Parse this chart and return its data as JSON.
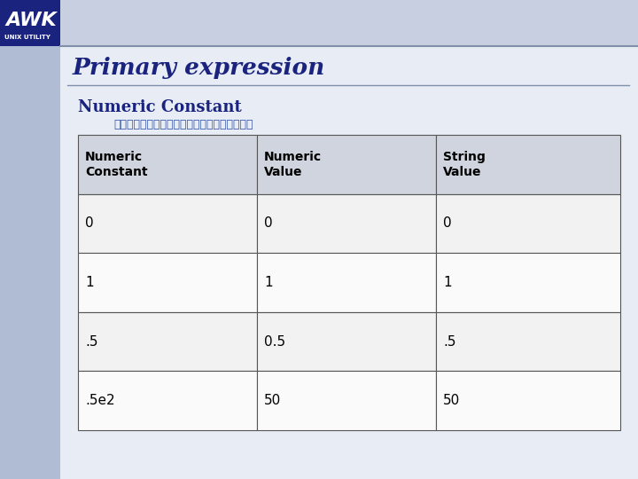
{
  "title": "Primary expression",
  "subtitle": "Numeric Constant",
  "thai_text": "ตารางตวอยางคาของคาคงท",
  "col_headers": [
    "Numeric\nConstant",
    "Numeric\nValue",
    "String\nValue"
  ],
  "rows": [
    [
      "0",
      "0",
      "0"
    ],
    [
      "1",
      "1",
      "1"
    ],
    [
      ".5",
      "0.5",
      ".5"
    ],
    [
      ".5e2",
      "50",
      "50"
    ]
  ],
  "title_color": "#1a237e",
  "subtitle_color": "#1a237e",
  "thai_color": "#3355aa",
  "logo_text": "AWK",
  "logo_sub": "UNIX UTILITY",
  "sidebar_color": "#b0bcd4",
  "main_bg_color": "#dde3ee",
  "banner_bg_color": "#c8cfe0",
  "content_bg_color": "#e8ecf5",
  "table_header_bg": "#d0d4de",
  "table_row_odd": "#f2f2f2",
  "table_row_even": "#fafafa",
  "table_border": "#555555"
}
